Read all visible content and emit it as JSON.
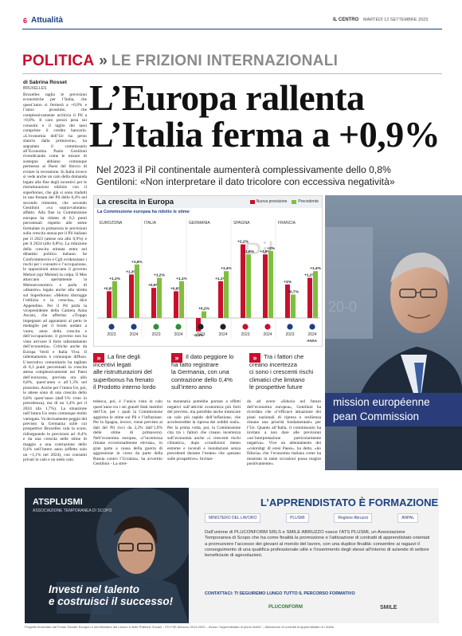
{
  "header": {
    "page_number": "6",
    "section": "Attualità",
    "paper_name": "IL CENTRO",
    "date": "MARTEDÌ 12 SETTEMBRE 2023"
  },
  "kicker": {
    "main": "POLITICA",
    "sub": "LE FRIZIONI INTERNAZIONALI"
  },
  "byline": {
    "author": "di Sabrina Rosset",
    "place": "BRUXELLES"
  },
  "headline": {
    "line1": "L’Europa rallenta",
    "line2": "L’Italia ferma a +0,9%"
  },
  "deck": {
    "line1": "Nel 2023 il Pil continentale aumenterà complessivamente dello 0,8%",
    "line2": "Gentiloni: «Non interpretare il dato tricolore con eccessiva negatività»"
  },
  "left_column": "Bruxelles taglia le previsioni economiche per l’Italia, che quest’anno si fermerà a +0,9% e l’anno prossimo, che complessivamente archivia il Pil a +0,8%. Il caro prezzi pesa sui consumi e il taglio dei tassi comprime il credito bancario. «L’economia dell’Ue ha perso slancio dalla primavera», ha segnalato il commissario all’Economia Paolo Gentiloni rivendicando come le misure di sostegno abbiano comunque permesso ai Paesi del blocco di evitare la recessione. In Italia invece si vede anche un calo della domanda legato alla fine degli incentivi per le ristrutturazioni edilizie con il superbonus, che già si sono tradotti in una frenata del Pil dello 0,4% nel secondo trimestre, che secondo Gentiloni «va sopravvalutato» affatto. Alla fine la Commissione europea ha ridotto di 0,3 punti percentuali rispetto alle stime formulate in primavera le previsioni sulla crescita annua per il Pil italiano per il 2023 (attese ora allo 0,9%) e per il 2024 (allo 0,8%). La riduzione della crescita stimata entra nel dibattito politico italiano. Se Confcommercio e Cgil evidenziano i rischi per i consumi e l’occupazione, le opposizioni attaccano il governo Meloni (spr Meloni) la colpa. Il Mes attaccano apertamente la Meloneconomics e parla di «disastro» legato anche alla stretta sul Superbonus: «Meloni distrugge l’edilizia e la crescita», dice Appendino. Per il Pd parla la vicepresidente della Camera Anna Ascani, che afferma: «Troppo impegnato ad appuntarsi al petto le medaglie per il boom andato a vuoto, anno della crescita e dell’occupazione, il governo non ha visto arrivare il forte rallentamento dell’economia». Critiche anche da Europa Verdi e Italia Viva. Il rallentamento è comunque diffuso. L’esecutivo comunitario ha tagliato di 0,3 punti percentuali la crescita attesa complessivamente nei Paesi dell’eurozona, prevista ora allo 0,8%, quest’anno e all’1,3% nel prossimo. Anche per l’intera Ue, poi, le attese sono di una crescita dello 0,8% quest’anno (dall’1% visto in precedenza), ma di un 1,4% per il 2024 (da 1,7%). La situazione nell’intera Ue resta comunque molto variegata. Va decisamente peggio del previsto la Germania sulle cui prospettive Bruxelles cala la scure, ridisegnando le previsioni ad -0,4% e da una crescita nelle stime di maggio a una contrazione dello 0,4% nell’intero anno (effetto solo un +1,1% nel 2024), con consumi privati in calo e un netto calo.",
  "chart_data": {
    "type": "bar",
    "title": "La crescita in Europa",
    "subtitle": "La Commissione europea ha ridotto le stime",
    "legend": [
      "Nuova previsione",
      "Precedente"
    ],
    "categories": [
      "EUROZONA",
      "ITALIA",
      "GERMANIA",
      "SPAGNA",
      "FRANCIA"
    ],
    "x": [
      "2023",
      "2024"
    ],
    "series": [
      {
        "name": "Nuova previsione",
        "values": [
          [
            0.8,
            1.3
          ],
          [
            0.9,
            0.8
          ],
          [
            -0.4,
            1.1
          ],
          [
            2.2,
            1.9
          ],
          [
            1.0,
            1.2
          ]
        ]
      },
      {
        "name": "Precedente",
        "values": [
          [
            1.1,
            1.6
          ],
          [
            1.2,
            1.1
          ],
          [
            0.2,
            1.4
          ],
          [
            1.9,
            2.0
          ],
          [
            0.7,
            1.4
          ]
        ]
      }
    ],
    "labels": [
      [
        [
          "+0,8%",
          "+1,3%"
        ],
        [
          "+1,1%",
          "+1,6%"
        ]
      ],
      [
        [
          "+0,9%",
          "+0,8%"
        ],
        [
          "+1,2%",
          "+1,1%"
        ]
      ],
      [
        [
          "-0,4%",
          "+1,1%"
        ],
        [
          "+0,2%",
          "+1,4%"
        ]
      ],
      [
        [
          "+2,2%",
          "+1,9%"
        ],
        [
          "+1,9%",
          "+2%"
        ]
      ],
      [
        [
          "+1%",
          "+1,2%"
        ],
        [
          "+0,7%",
          "+1,4%"
        ]
      ]
    ],
    "colors": {
      "new": "#c8102e",
      "old": "#7fbf3f"
    },
    "watermark": "Pil",
    "source": "ANSA"
  },
  "photo": {
    "band_line1": "mission européenne",
    "band_line2": "pean Commission",
    "backdrop_text": "20-0"
  },
  "highlights": [
    {
      "mark": "»",
      "text": [
        "La fine degli",
        "incentivi legati",
        "alle ristrutturazioni del",
        "superbonus ha frenato",
        "il Prodotto interno lordo"
      ]
    },
    {
      "mark": "»",
      "text": [
        "Il dato peggiore lo",
        "ha fatto registrare",
        "la Germania, con una",
        "contrazione dello 0,4%",
        "sull’intero anno"
      ]
    },
    {
      "mark": "»",
      "text": [
        "Tra i fattori che",
        "creano incertezza",
        "ci sono i crescenti rischi",
        "climatici che limitano",
        "le prospettive future"
      ]
    }
  ],
  "body_columns": [
    "tedesca, poi, è l’unica vista in calo quest’anno tra i sei grandi Stati membri dell’Ue, per i quali la Commissione aggiorna le stime sul Pil e l’inflazione. Per la Spagna, invece, viene previsto ai dati del Pil ricci da 2,2% dall’1,9% delle stime di primavera). Nell’economia europea, «l’incertezza rimane eccezionalmente elevata», in gran parte a causa della guerra di aggressione in corso da parte della Russia contro l’Ucraina», ha avvertito Gentiloni - La stret-",
    "ta monetaria potrebbe portare a effetti negativi sull’attività economica più forti del previsto, ma potrebbe anche innescare un calo più rapido dell’inflazione, che accelererebbe la ripresa dei redditi reali». Per la prima volta, poi, la Commissione cita tra i fattori che creano incertezza sull’economia anche «i crescenti rischi climatici», dopo «condizioni meteo estreme e incendi e inondazioni senza precedenti durante l’estate» che «pesano sulle prospettive». Invitan-",
    "do ad avere «fiducia nel futuro dell’economia europea», Gentiloni ha ricordato che «l’efficace attuazione dei piani nazionali di ripresa e resilienza rimane una priorità fondamentale» per l’Ue. Quanto all’Italia, il commissario ha invitato a non dare alle previsioni «un’interpretazione particolarmente negativa». Vive un allentamento dei «colorsbgr dî eresi Paesi», ha detto, «ho fiducia» che l’economia italiana come ha mostrato in tante occasioni possa reagire positivamente»."
  ],
  "ad": {
    "logo": "ATSPLUSMI",
    "logo_sub": "ASSOCIAZIONE TEMPORANEA DI SCOPO",
    "slogan_line1": "Investi nel talento",
    "slogan_line2": "e costruisci il successo!",
    "title": "L’APPRENDISTATO È FORMAZIONE",
    "partners": [
      "MINISTERO DEL LAVORO",
      "PLUSMI",
      "Regione Abruzzo",
      "ANPAL"
    ],
    "body": "Dall’unione di PLUCONFORM SRLS e SMILE ABRUZZO nasce l’ATS PLUSMI, un Associazione Temporanea di Scopo che ha come finalità la promozione e l’attivazione di contratti di apprendistato orientati a promuovere l’accesso dei giovani al mondo del lavoro, con una duplice finalità: consentire ai ragazzi il conseguimento di una qualifica professionale utile e l’inserimento degli stessi all’interno di aziende di settore beneficiarie di agevolazioni.",
    "cta": "CONTATTACI: TI SEGUIREMO LUNGO TUTTO IL PERCORSO FORMATIVO",
    "foot_left": "PLUCONFORM",
    "foot_right": "SMILE",
    "footer": "Progetto finanziato dal Fondo Sociale Europeo e dal Ministero del Lavoro e delle Politiche Sociali – PO FSE Abruzzo 2014-2020 – Avviso “Apprendistato di primo livello” – Attivazione di contratti di apprendistato di I livello"
  }
}
